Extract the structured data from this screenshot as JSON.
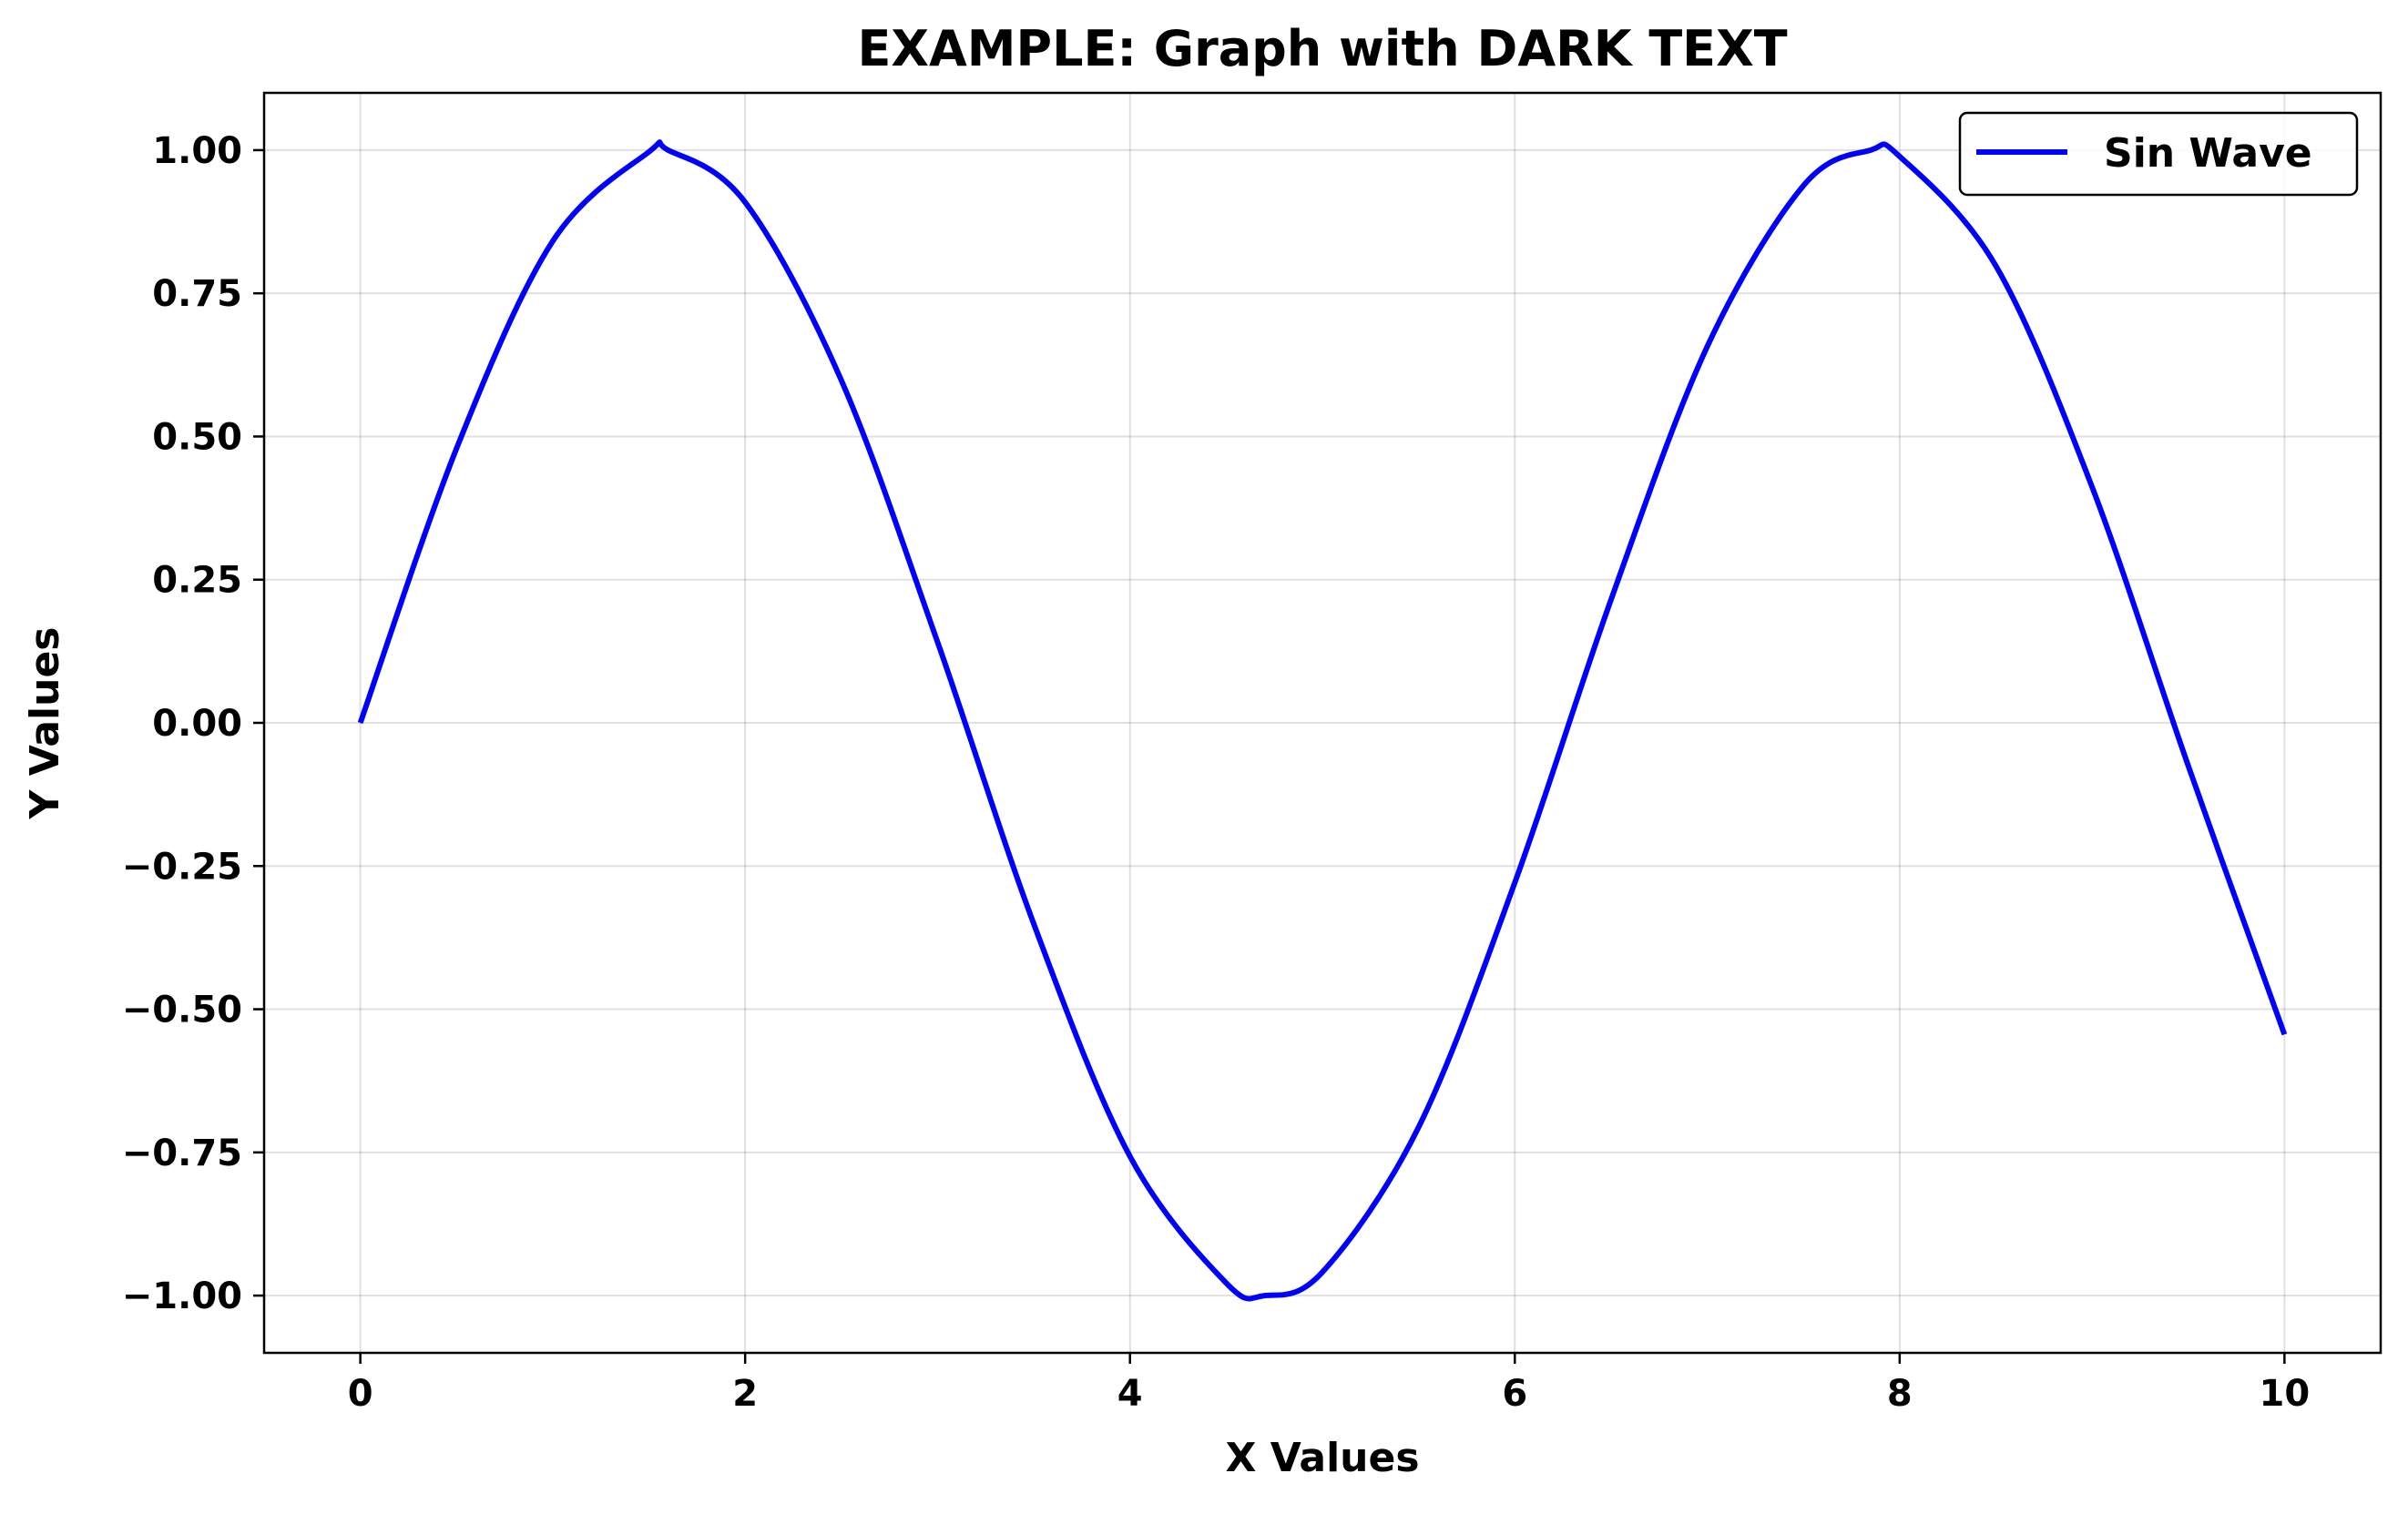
{
  "chart_data": {
    "type": "line",
    "title": "EXAMPLE: Graph with DARK TEXT",
    "xlabel": "X Values",
    "ylabel": "Y Values",
    "xlim": [
      -0.5,
      10.5
    ],
    "ylim": [
      -1.1,
      1.1
    ],
    "grid": true,
    "legend_position": "top-right",
    "xticks": [
      0,
      2,
      4,
      6,
      8,
      10
    ],
    "xtick_labels": [
      "0",
      "2",
      "4",
      "6",
      "8",
      "10"
    ],
    "yticks": [
      1.0,
      0.75,
      0.5,
      0.25,
      0.0,
      -0.25,
      -0.5,
      -0.75,
      -1.0
    ],
    "ytick_labels": [
      "1.00",
      "0.75",
      "0.50",
      "0.25",
      "0.00",
      "−0.25",
      "−0.50",
      "−0.75",
      "−1.00"
    ],
    "series": [
      {
        "name": "Sin Wave",
        "color": "#0000ff",
        "x": [
          0,
          0.5,
          1,
          1.5,
          1.6,
          2,
          2.5,
          3,
          3.5,
          4,
          4.5,
          4.7,
          5,
          5.5,
          6,
          6.5,
          7,
          7.5,
          7.85,
          8,
          8.5,
          9,
          9.5,
          10
        ],
        "y": [
          0,
          0.479,
          0.841,
          0.997,
          1.0,
          0.909,
          0.598,
          0.141,
          -0.351,
          -0.757,
          -0.978,
          -1.0,
          -0.959,
          -0.706,
          -0.279,
          0.215,
          0.657,
          0.938,
          1.0,
          0.989,
          0.798,
          0.412,
          -0.075,
          -0.544
        ]
      }
    ]
  }
}
